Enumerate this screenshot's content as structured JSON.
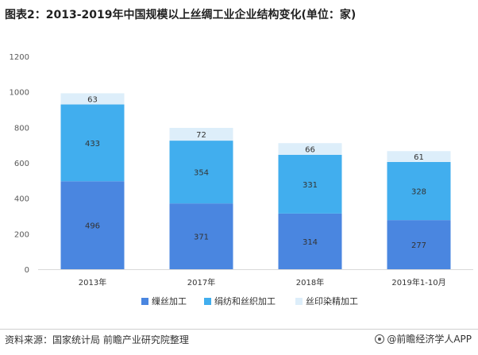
{
  "title": "图表2：2013-2019年中国规模以上丝绸工业企业结构变化(单位：家)",
  "source": "资料来源：国家统计局 前瞻产业研究院整理",
  "brand": "@前瞻经济学人APP",
  "colors": {
    "series1": "#4a86e0",
    "series2": "#41aeee",
    "series3": "#ddeefa",
    "grid": "#e6e6e6",
    "axis_text": "#595959"
  },
  "chart_data": {
    "type": "bar",
    "stacked": true,
    "categories": [
      "2013年",
      "2017年",
      "2018年",
      "2019年1-10月"
    ],
    "series": [
      {
        "name": "缫丝加工",
        "values": [
          496,
          371,
          314,
          277
        ]
      },
      {
        "name": "绢纺和丝织加工",
        "values": [
          433,
          354,
          331,
          328
        ]
      },
      {
        "name": "丝印染精加工",
        "values": [
          63,
          72,
          66,
          61
        ]
      }
    ],
    "yticks": [
      "0",
      "200",
      "400",
      "600",
      "800",
      "1000",
      "1200"
    ],
    "ylim": [
      0,
      1200
    ],
    "grid": false,
    "legend": "bottom"
  }
}
